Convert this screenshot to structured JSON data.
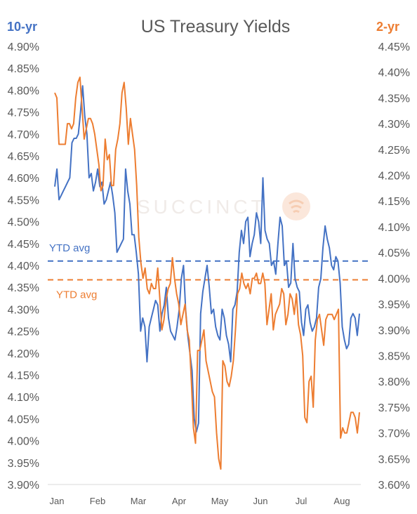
{
  "chart_data": {
    "type": "line",
    "title": "US Treasury Yields",
    "left_axis": {
      "label": "10-yr",
      "color": "#4472c4",
      "ylim": [
        3.9,
        4.9
      ],
      "ticks": [
        "3.90%",
        "3.95%",
        "4.00%",
        "4.05%",
        "4.10%",
        "4.15%",
        "4.20%",
        "4.25%",
        "4.30%",
        "4.35%",
        "4.40%",
        "4.45%",
        "4.50%",
        "4.55%",
        "4.60%",
        "4.65%",
        "4.70%",
        "4.75%",
        "4.80%",
        "4.85%",
        "4.90%"
      ]
    },
    "right_axis": {
      "label": "2-yr",
      "color": "#ed7d31",
      "ylim": [
        3.6,
        4.45
      ],
      "ticks": [
        "3.60%",
        "3.65%",
        "3.70%",
        "3.75%",
        "3.80%",
        "3.85%",
        "3.90%",
        "3.95%",
        "4.00%",
        "4.05%",
        "4.10%",
        "4.15%",
        "4.20%",
        "4.25%",
        "4.30%",
        "4.35%",
        "4.40%",
        "4.45%"
      ]
    },
    "x_ticks": [
      "Jan",
      "Feb",
      "Mar",
      "Apr",
      "May",
      "Jun",
      "Jul",
      "Aug"
    ],
    "grid": false,
    "watermark": "SUCCINCT",
    "series": [
      {
        "name": "10-yr",
        "axis": "left",
        "color": "#4472c4",
        "values": [
          4.58,
          4.62,
          4.55,
          4.56,
          4.57,
          4.58,
          4.59,
          4.6,
          4.68,
          4.69,
          4.69,
          4.7,
          4.75,
          4.81,
          4.74,
          4.7,
          4.6,
          4.61,
          4.57,
          4.59,
          4.62,
          4.58,
          4.59,
          4.54,
          4.55,
          4.57,
          4.59,
          4.56,
          4.52,
          4.43,
          4.44,
          4.45,
          4.46,
          4.62,
          4.57,
          4.54,
          4.47,
          4.47,
          4.43,
          4.38,
          4.25,
          4.28,
          4.26,
          4.18,
          4.26,
          4.28,
          4.3,
          4.32,
          4.31,
          4.25,
          4.29,
          4.31,
          4.35,
          4.28,
          4.25,
          4.24,
          4.23,
          4.26,
          4.3,
          4.37,
          4.4,
          4.3,
          4.24,
          4.2,
          4.16,
          4.05,
          4.02,
          4.04,
          4.29,
          4.34,
          4.37,
          4.4,
          4.35,
          4.29,
          4.3,
          4.26,
          4.24,
          4.23,
          4.3,
          4.28,
          4.24,
          4.22,
          4.18,
          4.3,
          4.31,
          4.34,
          4.43,
          4.48,
          4.45,
          4.5,
          4.51,
          4.42,
          4.45,
          4.47,
          4.52,
          4.5,
          4.45,
          4.6,
          4.48,
          4.46,
          4.45,
          4.4,
          4.41,
          4.38,
          4.45,
          4.51,
          4.49,
          4.4,
          4.41,
          4.35,
          4.36,
          4.45,
          4.37,
          4.35,
          4.34,
          4.27,
          4.24,
          4.3,
          4.31,
          4.27,
          4.25,
          4.26,
          4.28,
          4.35,
          4.37,
          4.44,
          4.49,
          4.46,
          4.44,
          4.4,
          4.39,
          4.42,
          4.41,
          4.36,
          4.26,
          4.23,
          4.21,
          4.22,
          4.28,
          4.29,
          4.28,
          4.24,
          4.29
        ]
      },
      {
        "name": "2-yr",
        "axis": "right",
        "color": "#ed7d31",
        "values": [
          4.36,
          4.35,
          4.26,
          4.26,
          4.26,
          4.26,
          4.3,
          4.3,
          4.29,
          4.3,
          4.35,
          4.38,
          4.39,
          4.33,
          4.27,
          4.29,
          4.31,
          4.31,
          4.3,
          4.28,
          4.25,
          4.22,
          4.17,
          4.18,
          4.27,
          4.23,
          4.24,
          4.18,
          4.18,
          4.25,
          4.27,
          4.3,
          4.36,
          4.38,
          4.33,
          4.26,
          4.31,
          4.28,
          4.25,
          4.18,
          4.08,
          4.03,
          4.0,
          4.02,
          3.98,
          3.97,
          3.99,
          3.98,
          3.98,
          4.02,
          3.96,
          3.9,
          3.92,
          3.96,
          3.98,
          3.99,
          4.04,
          4.0,
          3.97,
          3.95,
          3.91,
          3.93,
          3.95,
          3.9,
          3.88,
          3.8,
          3.71,
          3.68,
          3.86,
          3.86,
          3.88,
          3.9,
          3.84,
          3.82,
          3.8,
          3.78,
          3.77,
          3.7,
          3.65,
          3.63,
          3.84,
          3.83,
          3.8,
          3.79,
          3.81,
          3.84,
          3.9,
          3.97,
          3.98,
          4.01,
          3.99,
          3.98,
          3.99,
          3.97,
          4.0,
          4.0,
          4.01,
          3.99,
          3.99,
          4.01,
          3.99,
          3.91,
          3.94,
          3.97,
          3.9,
          3.93,
          3.94,
          3.95,
          3.98,
          3.97,
          3.91,
          3.93,
          3.97,
          3.96,
          3.93,
          3.97,
          3.91,
          3.89,
          3.85,
          3.73,
          3.72,
          3.8,
          3.81,
          3.75,
          3.88,
          3.92,
          3.93,
          3.9,
          3.87,
          3.92,
          3.93,
          3.93,
          3.93,
          3.92,
          3.93,
          3.94,
          3.69,
          3.71,
          3.7,
          3.7,
          3.72,
          3.74,
          3.74,
          3.73,
          3.7,
          3.74
        ]
      }
    ],
    "reference_lines": [
      {
        "label": "YTD avg",
        "axis": "left",
        "value": 4.41,
        "color": "#4472c4",
        "style": "dashed"
      },
      {
        "label": "YTD avg",
        "axis": "right",
        "value": 3.997,
        "color": "#ed7d31",
        "style": "dashed"
      }
    ]
  }
}
